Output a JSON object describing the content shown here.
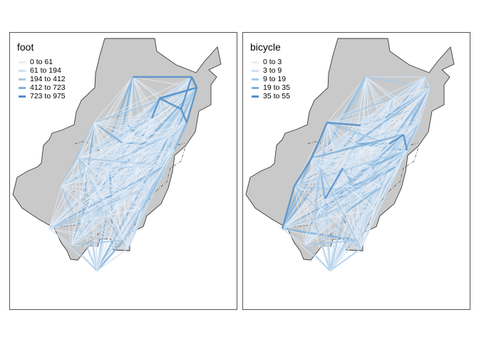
{
  "boundary_color": "#c9c9c9",
  "boundary_stroke": "#3a3a3a",
  "panels": [
    {
      "title": "foot",
      "legend": [
        {
          "label": "0 to 61",
          "color": "#e8f0f8"
        },
        {
          "label": "61 to 194",
          "color": "#cfe1f2"
        },
        {
          "label": "194 to 412",
          "color": "#a9cbe6"
        },
        {
          "label": "412 to 723",
          "color": "#7fb0d9"
        },
        {
          "label": "723 to 975",
          "color": "#5690c8"
        }
      ]
    },
    {
      "title": "bicycle",
      "legend": [
        {
          "label": "0 to 3",
          "color": "#e8f0f8"
        },
        {
          "label": "3 to 9",
          "color": "#cfe1f2"
        },
        {
          "label": "9 to 19",
          "color": "#a9cbe6"
        },
        {
          "label": "19 to 35",
          "color": "#7fb0d9"
        },
        {
          "label": "35 to 55",
          "color": "#5690c8"
        }
      ]
    }
  ]
}
